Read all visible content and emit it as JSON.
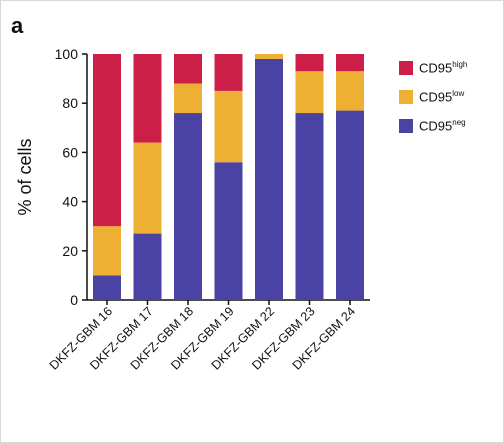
{
  "panel_label": "a",
  "legend": [
    {
      "base": "CD95",
      "sup": "high",
      "color": "#cc1f48"
    },
    {
      "base": "CD95",
      "sup": "low",
      "color": "#eeb033"
    },
    {
      "base": "CD95",
      "sup": "neg",
      "color": "#4a43a3"
    }
  ],
  "chart_data": {
    "type": "bar",
    "stacked": true,
    "categories": [
      "DKFZ-GBM 16",
      "DKFZ-GBM 17",
      "DKFZ-GBM 18",
      "DKFZ-GBM 19",
      "DKFZ-GBM 22",
      "DKFZ-GBM 23",
      "DKFZ-GBM 24"
    ],
    "series": [
      {
        "name": "CD95neg",
        "color": "#4a43a3",
        "values": [
          10,
          27,
          76,
          56,
          98,
          76,
          77
        ]
      },
      {
        "name": "CD95low",
        "color": "#eeb033",
        "values": [
          20,
          37,
          12,
          29,
          2,
          17,
          16
        ]
      },
      {
        "name": "CD95high",
        "color": "#cc1f48",
        "values": [
          70,
          36,
          12,
          15,
          0,
          7,
          7
        ]
      }
    ],
    "ylabel": "% of cells",
    "xlabel": "",
    "ylim": [
      0,
      100
    ],
    "yticks": [
      0,
      20,
      40,
      60,
      80,
      100
    ],
    "grid": false,
    "legend_position": "right"
  }
}
